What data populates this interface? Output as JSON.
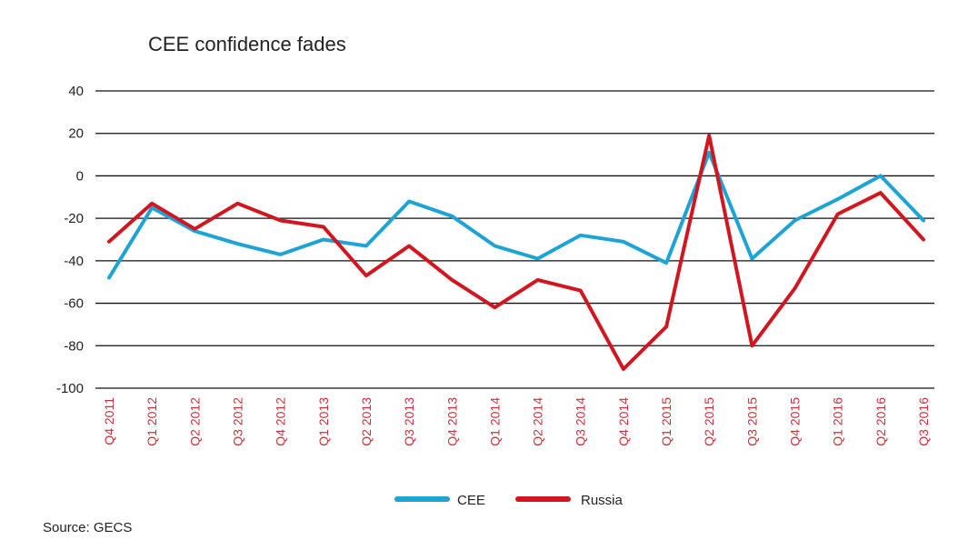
{
  "chart_data": {
    "type": "line",
    "title": "CEE confidence fades",
    "categories": [
      "Q4 2011",
      "Q1 2012",
      "Q2 2012",
      "Q3 2012",
      "Q4 2012",
      "Q1 2013",
      "Q2 2013",
      "Q3 2013",
      "Q4 2013",
      "Q1 2014",
      "Q2 2014",
      "Q3 2014",
      "Q4 2014",
      "Q1 2015",
      "Q2 2015",
      "Q3 2015",
      "Q4 2015",
      "Q1 2016",
      "Q2 2016",
      "Q3 2016"
    ],
    "series": [
      {
        "name": "CEE",
        "color": "#1ea3d6",
        "values": [
          -48,
          -15,
          -26,
          -32,
          -37,
          -30,
          -33,
          -12,
          -19,
          -33,
          -39,
          -28,
          -31,
          -41,
          11,
          -39,
          -21,
          -11,
          0,
          -21
        ]
      },
      {
        "name": "Russia",
        "color": "#d1161f",
        "values": [
          -31,
          -13,
          -25,
          -13,
          -21,
          -24,
          -47,
          -33,
          -49,
          -62,
          -49,
          -54,
          -91,
          -71,
          19,
          -80,
          -53,
          -18,
          -8,
          -30
        ]
      }
    ],
    "yticks": [
      40,
      20,
      0,
      -20,
      -40,
      -60,
      -80,
      -100
    ],
    "ylim": [
      -100,
      40
    ],
    "xlabel": "",
    "ylabel": "",
    "grid": "horizontal",
    "legend": "bottom-center",
    "tick_color": "#c8323a"
  },
  "source": "Source: GECS"
}
